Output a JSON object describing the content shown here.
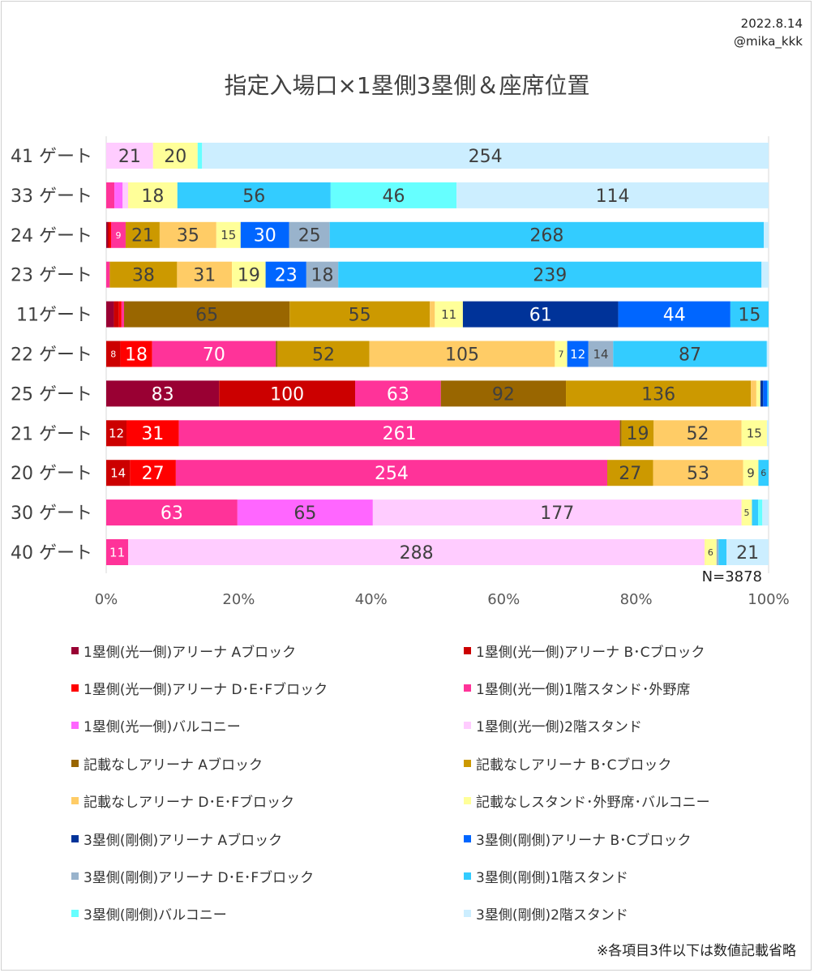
{
  "meta": {
    "date": "2022.8.14",
    "author": "@mika_kkk"
  },
  "footnote": "※各項目3件以下は数値記載省略",
  "chart_data": {
    "type": "bar",
    "orientation": "horizontal",
    "stacked": "percent",
    "title": "指定入場口×1塁側3塁側＆座席位置",
    "xlabel": "",
    "ylabel": "",
    "xlim": [
      0,
      100
    ],
    "x_ticks": [
      "0%",
      "20%",
      "40%",
      "60%",
      "80%",
      "100%"
    ],
    "n_label": "N=3878",
    "legend_position": "bottom",
    "categories": [
      "41 ゲート",
      "33 ゲート",
      "24 ゲート",
      "23 ゲート",
      "11ゲート",
      "22 ゲート",
      "25 ゲート",
      "21 ゲート",
      "20 ゲート",
      "30 ゲート",
      "40 ゲート"
    ],
    "series": [
      {
        "name": "1塁側(光一側)アリーナ Aブロック",
        "color": "#990033",
        "values": [
          0,
          0,
          1,
          0,
          3,
          0,
          83,
          0,
          0,
          0,
          0
        ]
      },
      {
        "name": "1塁側(光一側)アリーナ B･Cブロック",
        "color": "#cc0000",
        "values": [
          0,
          0,
          1,
          0,
          2,
          8,
          100,
          12,
          14,
          0,
          0
        ]
      },
      {
        "name": "1塁側(光一側)アリーナ D･E･Fブロック",
        "color": "#ff0000",
        "values": [
          0,
          0,
          1,
          0,
          1,
          18,
          0,
          31,
          27,
          0,
          0
        ]
      },
      {
        "name": "1塁側(光一側)1階スタンド･外野席",
        "color": "#ff3399",
        "values": [
          0,
          3,
          9,
          2,
          1,
          70,
          63,
          261,
          254,
          63,
          11
        ]
      },
      {
        "name": "1塁側(光一側)バルコニー",
        "color": "#ff66ff",
        "values": [
          0,
          3,
          0,
          0,
          0,
          0,
          0,
          0,
          0,
          65,
          0
        ]
      },
      {
        "name": "1塁側(光一側)2階スタンド",
        "color": "#ffccff",
        "values": [
          21,
          2,
          0,
          0,
          0,
          0,
          0,
          0,
          0,
          177,
          288
        ]
      },
      {
        "name": "記載なしアリーナ Aブロック",
        "color": "#996600",
        "values": [
          0,
          0,
          0,
          0,
          65,
          1,
          92,
          1,
          0,
          0,
          0
        ]
      },
      {
        "name": "記載なしアリーナ B･Cブロック",
        "color": "#cc9900",
        "values": [
          0,
          0,
          21,
          38,
          55,
          52,
          136,
          19,
          27,
          0,
          0
        ]
      },
      {
        "name": "記載なしアリーナ D･E･Fブロック",
        "color": "#ffcc66",
        "values": [
          0,
          0,
          35,
          31,
          2,
          105,
          4,
          52,
          53,
          0,
          0
        ]
      },
      {
        "name": "記載なしスタンド･外野席･バルコニー",
        "color": "#ffff99",
        "values": [
          20,
          18,
          15,
          19,
          11,
          7,
          3,
          15,
          9,
          5,
          6
        ]
      },
      {
        "name": "3塁側(剛側)アリーナ Aブロック",
        "color": "#003399",
        "values": [
          0,
          0,
          0,
          0,
          61,
          0,
          2,
          0,
          0,
          0,
          0
        ]
      },
      {
        "name": "3塁側(剛側)アリーナ B･Cブロック",
        "color": "#0066ff",
        "values": [
          0,
          0,
          30,
          23,
          44,
          12,
          3,
          0,
          0,
          0,
          0
        ]
      },
      {
        "name": "3塁側(剛側)アリーナ D･E･Fブロック",
        "color": "#99b3cc",
        "values": [
          0,
          0,
          25,
          18,
          0,
          14,
          0,
          0,
          0,
          0,
          1
        ]
      },
      {
        "name": "3塁側(剛側)1階スタンド",
        "color": "#33ccff",
        "values": [
          0,
          56,
          268,
          239,
          15,
          87,
          1,
          0,
          6,
          3,
          4
        ]
      },
      {
        "name": "3塁側(剛側)バルコニー",
        "color": "#66ffff",
        "values": [
          2,
          46,
          0,
          0,
          0,
          0,
          0,
          0,
          0,
          2,
          0
        ]
      },
      {
        "name": "3塁側(剛側)2階スタンド",
        "color": "#cceeff",
        "values": [
          254,
          114,
          3,
          4,
          0,
          1,
          0,
          1,
          0,
          3,
          21
        ]
      }
    ]
  }
}
